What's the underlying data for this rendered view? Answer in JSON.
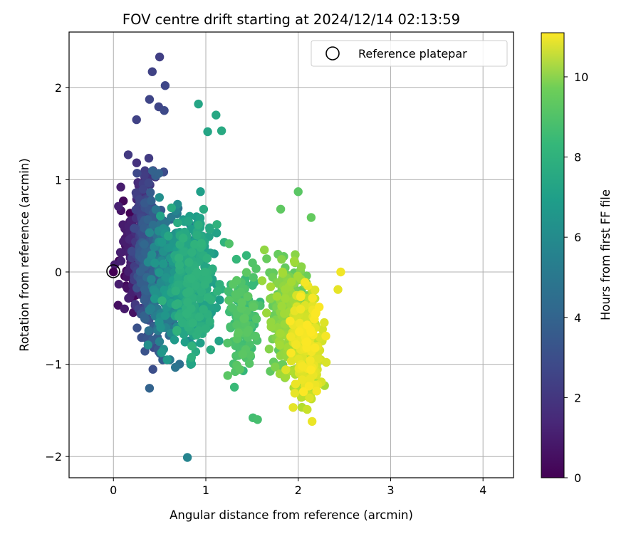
{
  "chart_data": {
    "type": "scatter",
    "title": "FOV centre drift starting at 2024/12/14 02:13:59",
    "xlabel": "Angular distance from reference (arcmin)",
    "ylabel": "Rotation from reference (arcmin)",
    "xlim": [
      -0.48,
      4.33
    ],
    "ylim": [
      -2.23,
      2.6
    ],
    "xticks": [
      0,
      1,
      2,
      3,
      4
    ],
    "yticks": [
      -2,
      -1,
      0,
      1,
      2
    ],
    "xtick_labels": [
      "0",
      "1",
      "2",
      "3",
      "4"
    ],
    "ytick_labels": [
      "−2",
      "−1",
      "0",
      "1",
      "2"
    ],
    "grid": true,
    "colormap": "viridis",
    "colorbar": {
      "label": "Hours from first FF file",
      "range": [
        0,
        11.1
      ],
      "ticks": [
        0,
        2,
        4,
        6,
        8,
        10
      ],
      "tick_labels": [
        "0",
        "2",
        "4",
        "6",
        "8",
        "10"
      ]
    },
    "legend": {
      "placement": "top-right",
      "entries": [
        "Reference platepar"
      ]
    },
    "reference_point": {
      "x": 0,
      "y": 0,
      "label": "Reference platepar"
    },
    "point_groups": [
      {
        "hours": [
          0,
          1
        ],
        "x_range": [
          0.0,
          0.35
        ],
        "y_range": [
          -0.6,
          0.95
        ],
        "count": 90
      },
      {
        "hours": [
          1,
          2.5
        ],
        "x_range": [
          0.15,
          0.5
        ],
        "y_range": [
          -0.7,
          1.5
        ],
        "count": 160
      },
      {
        "hours": [
          2.5,
          3.5
        ],
        "x_range": [
          0.2,
          0.6
        ],
        "y_range": [
          -1.25,
          1.3
        ],
        "count": 220
      },
      {
        "hours": [
          3.5,
          6
        ],
        "x_range": [
          0.3,
          0.95
        ],
        "y_range": [
          -1.2,
          1.0
        ],
        "count": 320
      },
      {
        "hours": [
          6,
          7.2
        ],
        "x_range": [
          0.5,
          1.25
        ],
        "y_range": [
          -1.2,
          1.0
        ],
        "count": 330
      },
      {
        "hours": [
          7.2,
          8.3
        ],
        "x_range": [
          1.15,
          1.65
        ],
        "y_range": [
          -1.3,
          0.3
        ],
        "count": 150
      },
      {
        "hours": [
          8.3,
          9.6
        ],
        "x_range": [
          1.55,
          2.2
        ],
        "y_range": [
          -1.4,
          0.45
        ],
        "count": 230
      },
      {
        "hours": [
          9.6,
          11.1
        ],
        "x_range": [
          1.85,
          2.35
        ],
        "y_range": [
          -1.6,
          0.0
        ],
        "count": 250
      }
    ],
    "highlight_points": [
      {
        "x": 0.5,
        "y": 2.33,
        "hours": 2.1
      },
      {
        "x": 0.42,
        "y": 2.17,
        "hours": 2.2
      },
      {
        "x": 0.56,
        "y": 2.02,
        "hours": 2.4
      },
      {
        "x": 0.39,
        "y": 1.87,
        "hours": 2.3
      },
      {
        "x": 0.49,
        "y": 1.79,
        "hours": 2.3
      },
      {
        "x": 0.55,
        "y": 1.75,
        "hours": 2.5
      },
      {
        "x": 0.25,
        "y": 1.65,
        "hours": 2.2
      },
      {
        "x": 0.92,
        "y": 1.82,
        "hours": 6.5
      },
      {
        "x": 1.11,
        "y": 1.7,
        "hours": 6.6
      },
      {
        "x": 1.17,
        "y": 1.53,
        "hours": 6.7
      },
      {
        "x": 1.02,
        "y": 1.52,
        "hours": 6.5
      },
      {
        "x": 2.0,
        "y": 0.87,
        "hours": 8.2
      },
      {
        "x": 1.81,
        "y": 0.68,
        "hours": 8.3
      },
      {
        "x": 2.14,
        "y": 0.59,
        "hours": 8.4
      },
      {
        "x": 2.46,
        "y": 0.0,
        "hours": 10.9
      },
      {
        "x": 2.43,
        "y": -0.19,
        "hours": 10.7
      },
      {
        "x": 0.8,
        "y": -2.01,
        "hours": 5.0
      },
      {
        "x": 2.15,
        "y": -1.62,
        "hours": 10.8
      },
      {
        "x": 1.56,
        "y": -1.6,
        "hours": 7.8
      },
      {
        "x": 1.51,
        "y": -1.58,
        "hours": 7.7
      },
      {
        "x": 0.39,
        "y": -1.26,
        "hours": 3.5
      },
      {
        "x": 0.12,
        "y": -0.4,
        "hours": 0.8
      },
      {
        "x": 0.08,
        "y": 0.92,
        "hours": 0.9
      },
      {
        "x": 0.16,
        "y": 1.27,
        "hours": 1.9
      }
    ]
  }
}
